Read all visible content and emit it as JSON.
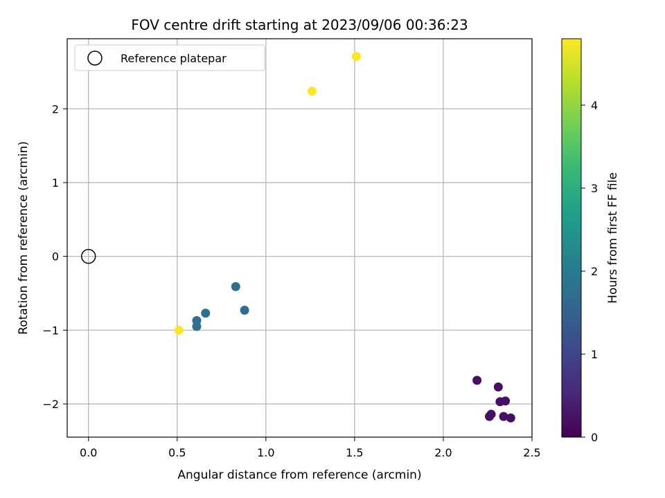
{
  "chart_data": {
    "type": "scatter",
    "title": "FOV centre drift starting at 2023/09/06 00:36:23",
    "xlabel": "Angular distance from reference (arcmin)",
    "ylabel": "Rotation from reference (arcmin)",
    "xlim": [
      -0.12,
      2.5
    ],
    "ylim": [
      -2.45,
      2.95
    ],
    "xticks": [
      0.0,
      0.5,
      1.0,
      1.5,
      2.0,
      2.5
    ],
    "xtick_labels": [
      "0.0",
      "0.5",
      "1.0",
      "1.5",
      "2.0",
      "2.5"
    ],
    "yticks": [
      -2,
      -1,
      0,
      1,
      2
    ],
    "ytick_labels": [
      "−2",
      "−1",
      "0",
      "1",
      "2"
    ],
    "grid": true,
    "legend": {
      "placement": "top-left",
      "entries": [
        "Reference platepar"
      ]
    },
    "reference_point": {
      "name": "Reference platepar",
      "x": 0.0,
      "y": 0.0
    },
    "series": [
      {
        "points": [
          {
            "x": 2.19,
            "y": -1.68,
            "hours": 0.2
          },
          {
            "x": 2.31,
            "y": -1.77,
            "hours": 0.2
          },
          {
            "x": 2.32,
            "y": -1.97,
            "hours": 0.2
          },
          {
            "x": 2.35,
            "y": -1.96,
            "hours": 0.2
          },
          {
            "x": 2.27,
            "y": -2.14,
            "hours": 0.2
          },
          {
            "x": 2.26,
            "y": -2.17,
            "hours": 0.2
          },
          {
            "x": 2.34,
            "y": -2.17,
            "hours": 0.2
          },
          {
            "x": 2.38,
            "y": -2.19,
            "hours": 0.2
          },
          {
            "x": 0.83,
            "y": -0.41,
            "hours": 1.75
          },
          {
            "x": 0.88,
            "y": -0.73,
            "hours": 1.75
          },
          {
            "x": 0.66,
            "y": -0.77,
            "hours": 1.75
          },
          {
            "x": 0.61,
            "y": -0.87,
            "hours": 1.75
          },
          {
            "x": 0.61,
            "y": -0.95,
            "hours": 1.75
          },
          {
            "x": 0.51,
            "y": -1.0,
            "hours": 4.8
          },
          {
            "x": 1.26,
            "y": 2.24,
            "hours": 4.8
          },
          {
            "x": 1.51,
            "y": 2.71,
            "hours": 4.8
          }
        ]
      }
    ],
    "colorbar": {
      "label": "Hours from first FF file",
      "colormap": "viridis",
      "range": [
        0,
        4.8
      ],
      "ticks": [
        0,
        1,
        2,
        3,
        4
      ],
      "tick_labels": [
        "0",
        "1",
        "2",
        "3",
        "4"
      ]
    },
    "colors": {
      "grid": "#b0b0b0",
      "axes": "#000000",
      "legend_border": "#cccccc"
    }
  }
}
